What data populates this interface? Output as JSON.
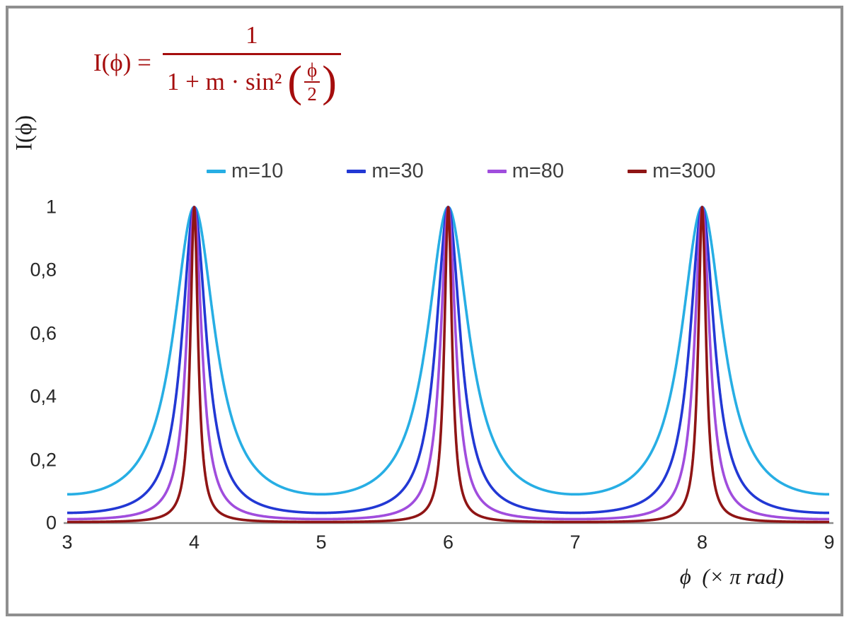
{
  "colors": {
    "formula": "#a50d0d",
    "axis": "#8a8a8a",
    "tick_text": "#262626",
    "legend_text": "#3f3f3f",
    "frame": "#8f8f8f"
  },
  "formula": {
    "lhs": "I(ϕ) =",
    "numerator": "1",
    "denominator_prefix": "1 + m · sin²",
    "open_paren": "(",
    "inner_numerator": "ϕ",
    "inner_denominator": "2",
    "close_paren": ")"
  },
  "chart_data": {
    "type": "line",
    "formula": "I(phi) = 1 / (1 + m * sin^2(phi/2)), phi = x * pi rad",
    "xlabel": "ϕ  (× π rad)",
    "ylabel": "I(ϕ)",
    "x_range": [
      3,
      9
    ],
    "y_range": [
      0,
      1
    ],
    "x_ticks": [
      "3",
      "4",
      "5",
      "6",
      "7",
      "8",
      "9"
    ],
    "y_ticks": [
      "0",
      "0,2",
      "0,4",
      "0,6",
      "0,8",
      "1"
    ],
    "grid": false,
    "legend_position": "top-center",
    "peaks_at_x": [
      4,
      6,
      8
    ],
    "series": [
      {
        "name": "m=10",
        "m": 10,
        "color": "#27aee4"
      },
      {
        "name": "m=30",
        "m": 30,
        "color": "#2238d4"
      },
      {
        "name": "m=80",
        "m": 80,
        "color": "#a04ddd"
      },
      {
        "name": "m=300",
        "m": 300,
        "color": "#8f1515"
      }
    ]
  }
}
